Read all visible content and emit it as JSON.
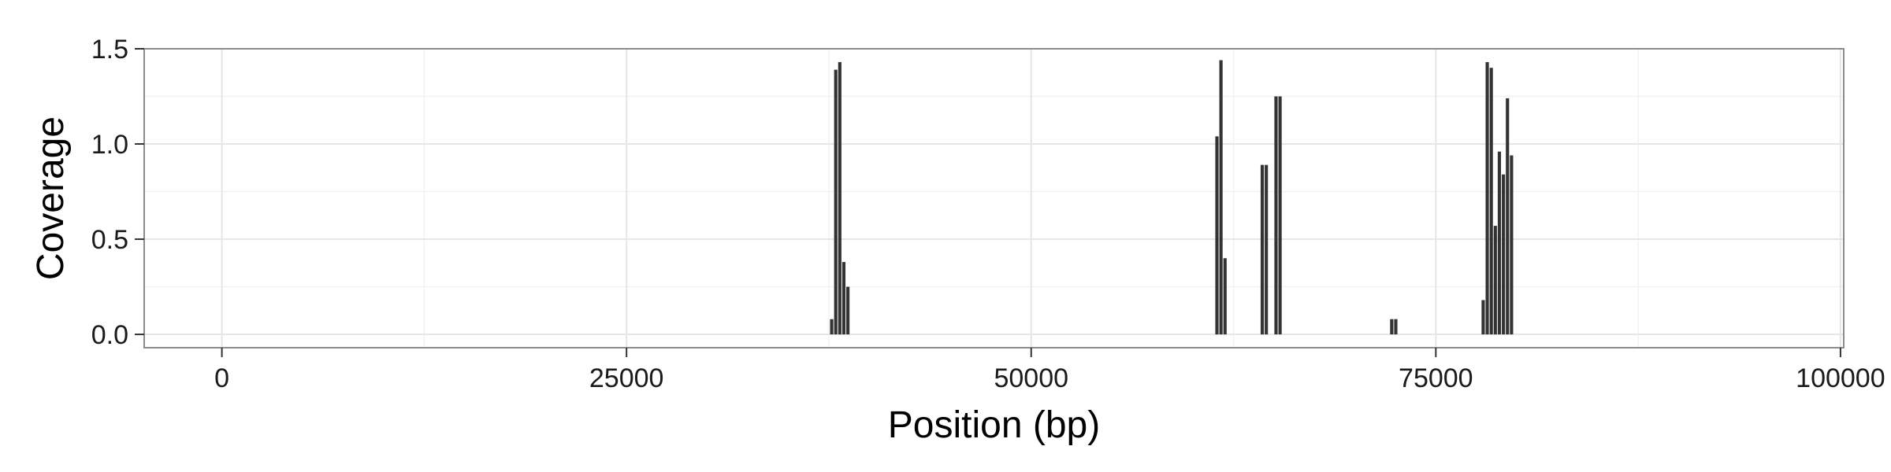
{
  "chart_data": {
    "type": "bar",
    "title": "",
    "xlabel": "Position (bp)",
    "ylabel": "Coverage",
    "xlim": [
      -4800,
      100200
    ],
    "ylim": [
      -0.07,
      1.5
    ],
    "x_ticks": [
      {
        "value": 0,
        "label": "0"
      },
      {
        "value": 25000,
        "label": "25000"
      },
      {
        "value": 50000,
        "label": "50000"
      },
      {
        "value": 75000,
        "label": "75000"
      },
      {
        "value": 100000,
        "label": "100000"
      }
    ],
    "y_ticks": [
      {
        "value": 0.0,
        "label": "0.0"
      },
      {
        "value": 0.5,
        "label": "0.5"
      },
      {
        "value": 1.0,
        "label": "1.0"
      },
      {
        "value": 1.5,
        "label": "1.5"
      }
    ],
    "grid": true,
    "bar_width": 250,
    "bar_color": "#333333",
    "bars": [
      {
        "x": 37700,
        "y": 0.08
      },
      {
        "x": 37950,
        "y": 1.39
      },
      {
        "x": 38200,
        "y": 1.43
      },
      {
        "x": 38450,
        "y": 0.38
      },
      {
        "x": 38700,
        "y": 0.25
      },
      {
        "x": 61500,
        "y": 1.04
      },
      {
        "x": 61750,
        "y": 1.44
      },
      {
        "x": 62000,
        "y": 0.4
      },
      {
        "x": 64300,
        "y": 0.89
      },
      {
        "x": 64550,
        "y": 0.89
      },
      {
        "x": 65150,
        "y": 1.25
      },
      {
        "x": 65400,
        "y": 1.25
      },
      {
        "x": 72300,
        "y": 0.08
      },
      {
        "x": 72550,
        "y": 0.08
      },
      {
        "x": 77950,
        "y": 0.18
      },
      {
        "x": 78200,
        "y": 1.43
      },
      {
        "x": 78450,
        "y": 1.4
      },
      {
        "x": 78700,
        "y": 0.57
      },
      {
        "x": 78950,
        "y": 0.96
      },
      {
        "x": 79200,
        "y": 0.84
      },
      {
        "x": 79450,
        "y": 1.24
      },
      {
        "x": 79700,
        "y": 0.94
      }
    ]
  },
  "colors": {
    "panel_border": "#8c8c8c",
    "grid_major": "#e6e6e6",
    "grid_minor": "#f2f2f2",
    "tick_color": "#333333"
  }
}
